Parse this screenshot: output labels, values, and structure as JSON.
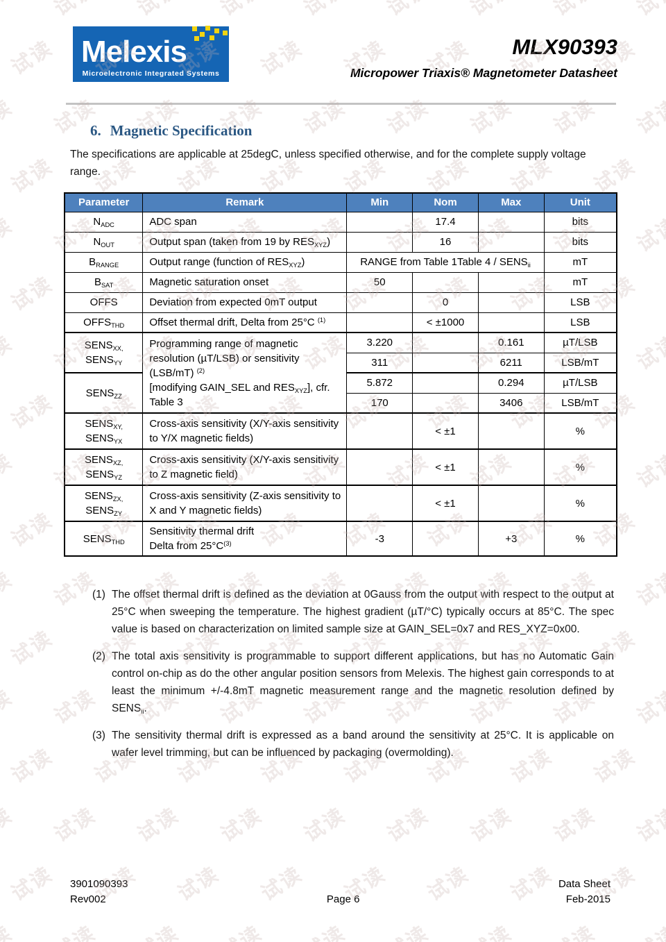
{
  "watermark": {
    "text": "试读"
  },
  "colors": {
    "logo_blue": "#1565b4",
    "logo_yellow": "#f2d411",
    "table_header_bg": "#4e81bd",
    "heading_blue": "#2a5783"
  },
  "header": {
    "logo": {
      "brand": "Melexis",
      "tagline": "Microelectronic Integrated Systems"
    },
    "title": "MLX90393",
    "subtitle": "Micropower Triaxis® Magnetometer Datasheet"
  },
  "section": {
    "number": "6.",
    "title": "Magnetic Specification",
    "intro": "The specifications are applicable at 25degC, unless specified otherwise, and for the complete supply voltage range."
  },
  "table": {
    "columns": [
      "Parameter",
      "Remark",
      "Min",
      "Nom",
      "Max",
      "Unit"
    ],
    "rows": {
      "nadc": {
        "param": [
          {
            "t": "N"
          },
          {
            "sub": "ADC"
          }
        ],
        "remark": [
          {
            "t": "ADC span"
          }
        ],
        "nom": "17.4",
        "unit": "bits"
      },
      "nout": {
        "param": [
          {
            "t": "N"
          },
          {
            "sub": "OUT"
          }
        ],
        "remark": [
          {
            "t": "Output span (taken from 19 by RES"
          },
          {
            "sub": "XYZ"
          },
          {
            "t": ")"
          }
        ],
        "nom": "16",
        "unit": "bits"
      },
      "brange": {
        "param": [
          {
            "t": "B"
          },
          {
            "sub": "RANGE"
          }
        ],
        "remark": [
          {
            "t": "Output range (function of RES"
          },
          {
            "sub": "XYZ"
          },
          {
            "t": ")"
          }
        ],
        "range": [
          {
            "t": "RANGE from Table 1Table 4 / SENS"
          },
          {
            "sub": "ii"
          }
        ],
        "unit": "mT"
      },
      "bsat": {
        "param": [
          {
            "t": "B"
          },
          {
            "sub": "SAT"
          }
        ],
        "remark": [
          {
            "t": "Magnetic saturation onset"
          }
        ],
        "min": "50",
        "unit": "mT"
      },
      "offs": {
        "param": [
          {
            "t": "OFFS"
          }
        ],
        "remark": [
          {
            "t": "Deviation from expected 0mT output"
          }
        ],
        "nom": "0",
        "unit": "LSB"
      },
      "offsthd": {
        "param": [
          {
            "t": "OFFS"
          },
          {
            "sub": "THD"
          }
        ],
        "remark": [
          {
            "t": "Offset thermal drift, Delta from 25°C "
          },
          {
            "sup": "(1)"
          }
        ],
        "nom": "< ±1000",
        "unit": "LSB"
      },
      "sens": {
        "param_xxyy": [
          {
            "t": "SENS"
          },
          {
            "sub": "XX,"
          },
          {
            "br": true
          },
          {
            "t": "SENS"
          },
          {
            "sub": "YY"
          }
        ],
        "param_zz": [
          {
            "t": "SENS"
          },
          {
            "sub": "ZZ"
          }
        ],
        "remark": [
          {
            "t": "Programming range of magnetic resolution (µT/LSB) or sensitivity (LSB/mT) "
          },
          {
            "sup": "(2)"
          },
          {
            "br": true
          },
          {
            "t": "[modifying GAIN_SEL and RES"
          },
          {
            "sub": "XYZ"
          },
          {
            "t": "], cfr. Table 3"
          }
        ],
        "sub": [
          {
            "min": "3.220",
            "max": "0.161",
            "unit": "µT/LSB"
          },
          {
            "min": "311",
            "max": "6211",
            "unit": "LSB/mT"
          },
          {
            "min": "5.872",
            "max": "0.294",
            "unit": "µT/LSB"
          },
          {
            "min": "170",
            "max": "3406",
            "unit": "LSB/mT"
          }
        ]
      },
      "crossxy": {
        "param": [
          {
            "t": "SENS"
          },
          {
            "sub": "XY,"
          },
          {
            "br": true
          },
          {
            "t": "SENS"
          },
          {
            "sub": "YX"
          }
        ],
        "remark": [
          {
            "t": "Cross-axis sensitivity (X/Y-axis sensitivity to Y/X magnetic fields)"
          }
        ],
        "nom": "< ±1",
        "unit": "%"
      },
      "crossxz": {
        "param": [
          {
            "t": "SENS"
          },
          {
            "sub": "XZ,"
          },
          {
            "br": true
          },
          {
            "t": "SENS"
          },
          {
            "sub": "YZ"
          }
        ],
        "remark": [
          {
            "t": "Cross-axis sensitivity (X/Y-axis sensitivity to Z magnetic field)"
          }
        ],
        "nom": "< ±1",
        "unit": "%"
      },
      "crosszx": {
        "param": [
          {
            "t": "SENS"
          },
          {
            "sub": "ZX,"
          },
          {
            "br": true
          },
          {
            "t": "SENS"
          },
          {
            "sub": "ZY"
          }
        ],
        "remark": [
          {
            "t": "Cross-axis sensitivity (Z-axis sensitivity to X and Y magnetic fields)"
          }
        ],
        "nom": "< ±1",
        "unit": "%"
      },
      "sensthd": {
        "param": [
          {
            "t": "SENS"
          },
          {
            "sub": "THD"
          }
        ],
        "remark": [
          {
            "t": "Sensitivity thermal drift"
          },
          {
            "br": true
          },
          {
            "t": "Delta from 25°C"
          },
          {
            "sup": "(3)"
          }
        ],
        "min": "-3",
        "max": "+3",
        "unit": "%"
      }
    }
  },
  "footnotes": [
    {
      "marker": "(1)",
      "text": [
        {
          "t": "The offset thermal drift is defined as the deviation at 0Gauss from the output with respect to the output at 25°C when sweeping the temperature. The highest gradient (µT/°C) typically occurs at 85°C. The spec value is based on characterization on limited sample size at GAIN_SEL=0x7 and RES_XYZ=0x00."
        }
      ]
    },
    {
      "marker": "(2)",
      "text": [
        {
          "t": "The total axis sensitivity is programmable to support different applications, but has no Automatic Gain control on-chip as do the other angular position sensors from Melexis. The highest gain corresponds to at least the minimum +/-4.8mT magnetic measurement range and the magnetic resolution defined by SENS"
        },
        {
          "sub": "ii"
        },
        {
          "t": "."
        }
      ]
    },
    {
      "marker": "(3)",
      "text": [
        {
          "t": "The sensitivity thermal drift is expressed as a band around the sensitivity at 25°C. It is applicable on wafer level trimming, but can be influenced by packaging (overmolding)."
        }
      ]
    }
  ],
  "footer": {
    "doc_number": "3901090393",
    "revision": "Rev002",
    "page_label": "Page 6",
    "doc_type": "Data Sheet",
    "date": "Feb-2015"
  }
}
